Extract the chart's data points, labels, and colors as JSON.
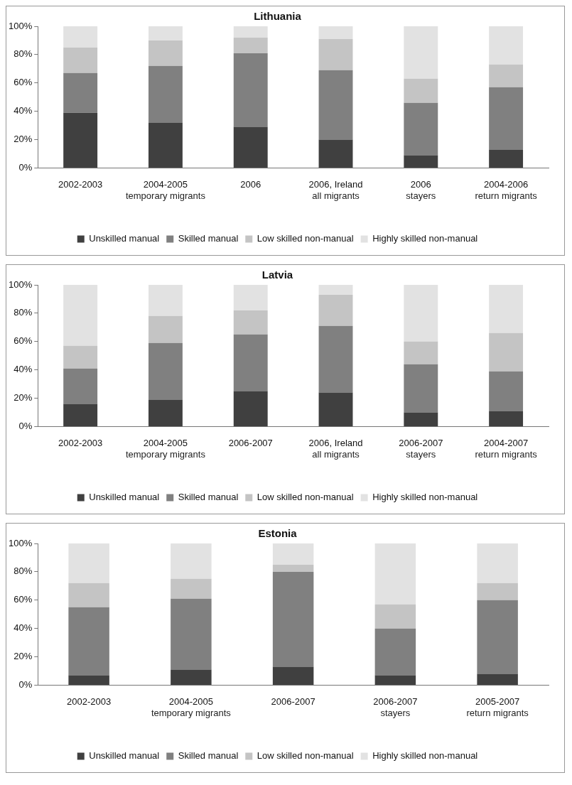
{
  "chart_data": [
    {
      "type": "bar",
      "title": "Lithuania",
      "stacked": true,
      "legend": "bottom",
      "categories": [
        "2002-2003",
        "2004-2005",
        "2006",
        "2006, Ireland",
        "2006",
        "2004-2006"
      ],
      "series": [
        {
          "name": "Unskilled manual",
          "color": "#404040",
          "values": [
            39,
            32,
            29,
            20,
            9,
            13
          ]
        },
        {
          "name": "Skilled manual",
          "color": "#808080",
          "values": [
            28,
            40,
            52,
            49,
            37,
            44
          ]
        },
        {
          "name": "Low skilled non-manual",
          "color": "#c4c4c4",
          "values": [
            18,
            18,
            11,
            22,
            17,
            16
          ]
        },
        {
          "name": "Highly skilled non-manual",
          "color": "#e2e2e2",
          "values": [
            15,
            10,
            8,
            9,
            37,
            27
          ]
        }
      ],
      "ylim": [
        0,
        100
      ],
      "yticks": [
        {
          "value": 0,
          "label": "0%"
        },
        {
          "value": 20,
          "label": "20%"
        },
        {
          "value": 40,
          "label": "40%"
        },
        {
          "value": 60,
          "label": "60%"
        },
        {
          "value": 80,
          "label": "80%"
        },
        {
          "value": 100,
          "label": "100%"
        }
      ],
      "annotations": [
        "temporary migrants",
        "all migrants",
        "stayers",
        "return migrants"
      ]
    },
    {
      "type": "bar",
      "title": "Latvia",
      "stacked": true,
      "legend": "bottom",
      "categories": [
        "2002-2003",
        "2004-2005",
        "2006-2007",
        "2006, Ireland",
        "2006-2007",
        "2004-2007"
      ],
      "series": [
        {
          "name": "Unskilled manual",
          "color": "#404040",
          "values": [
            16,
            19,
            25,
            24,
            10,
            11
          ]
        },
        {
          "name": "Skilled manual",
          "color": "#808080",
          "values": [
            25,
            40,
            40,
            47,
            34,
            28
          ]
        },
        {
          "name": "Low skilled non-manual",
          "color": "#c4c4c4",
          "values": [
            16,
            19,
            17,
            22,
            16,
            27
          ]
        },
        {
          "name": "Highly skilled non-manual",
          "color": "#e2e2e2",
          "values": [
            43,
            22,
            18,
            7,
            40,
            34
          ]
        }
      ],
      "ylim": [
        0,
        100
      ],
      "yticks": [
        {
          "value": 0,
          "label": "0%"
        },
        {
          "value": 20,
          "label": "20%"
        },
        {
          "value": 40,
          "label": "40%"
        },
        {
          "value": 60,
          "label": "60%"
        },
        {
          "value": 80,
          "label": "80%"
        },
        {
          "value": 100,
          "label": "100%"
        }
      ],
      "annotations": [
        "temporary migrants",
        "all migrants",
        "stayers",
        "return migrants"
      ]
    },
    {
      "type": "bar",
      "title": "Estonia",
      "stacked": true,
      "legend": "bottom",
      "categories": [
        "2002-2003",
        "2004-2005",
        "2006-2007",
        "2006-2007",
        "2005-2007"
      ],
      "series": [
        {
          "name": "Unskilled manual",
          "color": "#404040",
          "values": [
            7,
            11,
            13,
            7,
            8
          ]
        },
        {
          "name": "Skilled manual",
          "color": "#808080",
          "values": [
            48,
            50,
            67,
            33,
            52
          ]
        },
        {
          "name": "Low skilled non-manual",
          "color": "#c4c4c4",
          "values": [
            17,
            14,
            5,
            17,
            12
          ]
        },
        {
          "name": "Highly skilled non-manual",
          "color": "#e2e2e2",
          "values": [
            28,
            25,
            15,
            43,
            28
          ]
        }
      ],
      "ylim": [
        0,
        100
      ],
      "yticks": [
        {
          "value": 0,
          "label": "0%"
        },
        {
          "value": 20,
          "label": "20%"
        },
        {
          "value": 40,
          "label": "40%"
        },
        {
          "value": 60,
          "label": "60%"
        },
        {
          "value": 80,
          "label": "80%"
        },
        {
          "value": 100,
          "label": "100%"
        }
      ],
      "annotations": [
        "temporary migrants",
        "stayers",
        "return migrants"
      ]
    }
  ]
}
